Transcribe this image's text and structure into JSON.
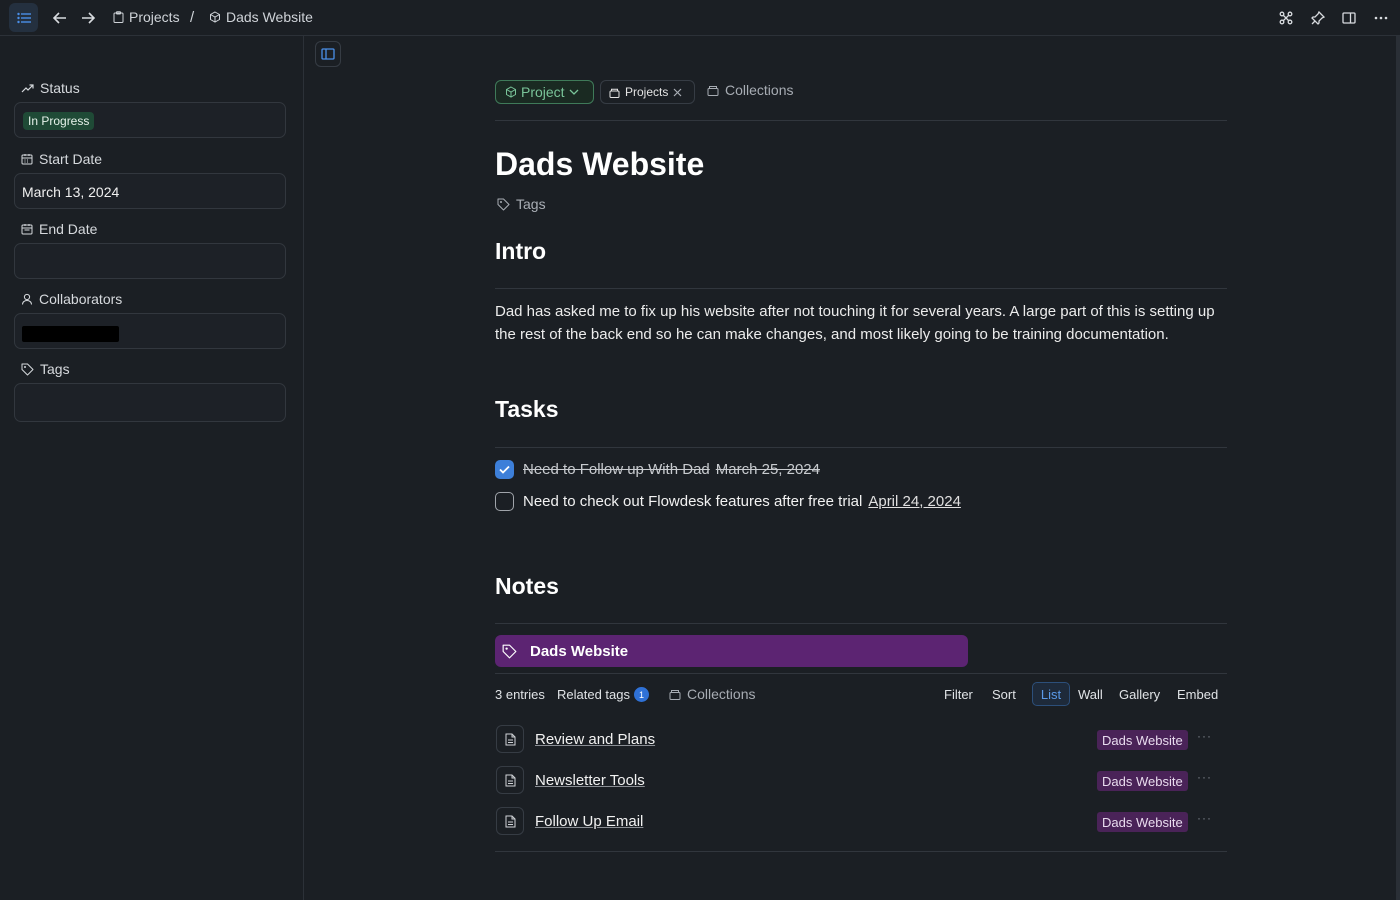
{
  "topbar": {
    "breadcrumb_parent": "Projects",
    "breadcrumb_separator": "/",
    "breadcrumb_current": "Dads Website"
  },
  "sidebar": {
    "status_label": "Status",
    "status_value": "In Progress",
    "start_date_label": "Start Date",
    "start_date_value": "March 13, 2024",
    "end_date_label": "End Date",
    "end_date_value": "",
    "collaborators_label": "Collaborators",
    "tags_label": "Tags"
  },
  "page": {
    "type_chip": "Project",
    "collection_chip": "Projects",
    "collections_link": "Collections",
    "title": "Dads Website",
    "tags_placeholder": "Tags",
    "intro_heading": "Intro",
    "intro_text": "Dad has asked me to fix up his website after not touching it for several years. A large part of this is setting up the rest of the back end so he can make changes, and most likely going to be training documentation.",
    "tasks_heading": "Tasks",
    "tasks": [
      {
        "text": "Need to Follow up With Dad",
        "date": "March 25, 2024",
        "done": true
      },
      {
        "text": "Need to check out Flowdesk features after free trial",
        "date": "April 24, 2024",
        "done": false
      }
    ],
    "notes_heading": "Notes",
    "tag_banner": "Dads Website"
  },
  "notes_toolbar": {
    "entries": "3 entries",
    "related_tags": "Related tags",
    "related_count": "1",
    "collections": "Collections",
    "filter": "Filter",
    "sort": "Sort",
    "list": "List",
    "wall": "Wall",
    "gallery": "Gallery",
    "embed": "Embed"
  },
  "entries": [
    {
      "title": "Review and Plans",
      "tag": "Dads Website",
      "more": "···"
    },
    {
      "title": "Newsletter Tools",
      "tag": "Dads Website",
      "more": "···"
    },
    {
      "title": "Follow Up Email",
      "tag": "Dads Website",
      "more": "···"
    }
  ],
  "colors": {
    "background": "#1b1f24",
    "status_green": "#1f4a36",
    "tag_purple": "#5c2472",
    "accent_blue": "#3d7fd9"
  }
}
